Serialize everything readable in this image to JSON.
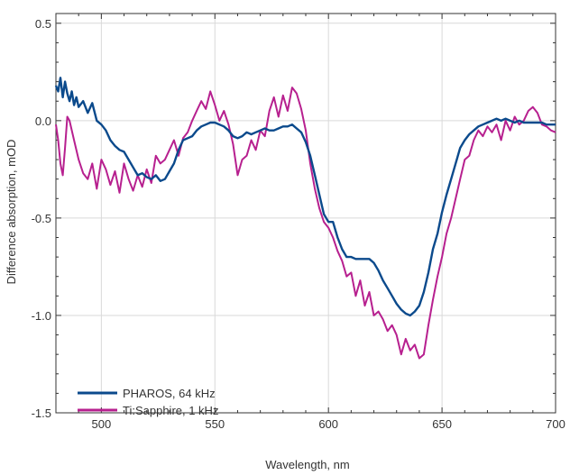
{
  "chart_data": {
    "type": "line",
    "xlabel": "Wavelength, nm",
    "ylabel": "Difference absorption, mOD",
    "xlim": [
      480,
      700
    ],
    "ylim": [
      -1.5,
      0.55
    ],
    "x_ticks": [
      500,
      550,
      600,
      650,
      700
    ],
    "y_ticks": [
      0.5,
      0.0,
      -0.5,
      -1.0,
      -1.5
    ],
    "x_tick_labels": [
      "500",
      "550",
      "600",
      "650",
      "700"
    ],
    "y_tick_labels": [
      "0.5",
      "0.0",
      "-0.5",
      "-1.0",
      "-1.5"
    ],
    "grid": true,
    "legend_position": "bottom-left",
    "series": [
      {
        "name": "PHAROS, 64 kHz",
        "color": "#0b4a8c",
        "x": [
          480,
          481,
          482,
          483,
          484,
          485,
          486,
          487,
          488,
          489,
          490,
          492,
          494,
          496,
          498,
          500,
          502,
          504,
          506,
          508,
          510,
          512,
          514,
          516,
          518,
          520,
          522,
          524,
          526,
          528,
          530,
          532,
          534,
          536,
          538,
          540,
          542,
          544,
          546,
          548,
          550,
          552,
          554,
          556,
          558,
          560,
          562,
          564,
          566,
          568,
          570,
          572,
          574,
          576,
          578,
          580,
          582,
          584,
          586,
          588,
          590,
          592,
          594,
          596,
          598,
          600,
          602,
          604,
          606,
          608,
          610,
          612,
          614,
          616,
          618,
          620,
          622,
          624,
          626,
          628,
          630,
          632,
          634,
          636,
          638,
          640,
          642,
          644,
          646,
          648,
          650,
          652,
          654,
          656,
          658,
          660,
          662,
          664,
          666,
          668,
          670,
          672,
          674,
          676,
          678,
          680,
          682,
          684,
          686,
          688,
          690,
          692,
          694,
          696,
          698,
          700
        ],
        "y": [
          0.18,
          0.15,
          0.22,
          0.12,
          0.2,
          0.14,
          0.1,
          0.15,
          0.08,
          0.12,
          0.07,
          0.1,
          0.04,
          0.09,
          0.0,
          -0.02,
          -0.05,
          -0.1,
          -0.13,
          -0.15,
          -0.16,
          -0.2,
          -0.24,
          -0.28,
          -0.27,
          -0.29,
          -0.3,
          -0.28,
          -0.31,
          -0.3,
          -0.26,
          -0.22,
          -0.15,
          -0.1,
          -0.09,
          -0.08,
          -0.05,
          -0.03,
          -0.02,
          -0.01,
          -0.01,
          -0.02,
          -0.03,
          -0.05,
          -0.08,
          -0.09,
          -0.08,
          -0.06,
          -0.07,
          -0.06,
          -0.05,
          -0.04,
          -0.05,
          -0.05,
          -0.04,
          -0.03,
          -0.03,
          -0.02,
          -0.04,
          -0.06,
          -0.11,
          -0.18,
          -0.28,
          -0.38,
          -0.48,
          -0.52,
          -0.52,
          -0.6,
          -0.66,
          -0.7,
          -0.7,
          -0.71,
          -0.71,
          -0.71,
          -0.71,
          -0.73,
          -0.77,
          -0.82,
          -0.86,
          -0.9,
          -0.94,
          -0.97,
          -0.99,
          -1.0,
          -0.98,
          -0.95,
          -0.88,
          -0.78,
          -0.66,
          -0.58,
          -0.47,
          -0.38,
          -0.3,
          -0.22,
          -0.14,
          -0.1,
          -0.07,
          -0.05,
          -0.03,
          -0.02,
          -0.01,
          0.0,
          0.01,
          0.0,
          0.01,
          0.0,
          -0.01,
          0.0,
          -0.01,
          -0.01,
          -0.01,
          -0.01,
          -0.01,
          -0.02,
          -0.02,
          -0.02
        ]
      },
      {
        "name": "Ti:Sapphire, 1 kHz",
        "color": "#b7208f",
        "x": [
          480,
          481,
          482,
          483,
          484,
          485,
          486,
          488,
          490,
          492,
          494,
          496,
          498,
          500,
          502,
          504,
          506,
          508,
          510,
          512,
          514,
          516,
          518,
          520,
          522,
          524,
          526,
          528,
          530,
          532,
          534,
          536,
          538,
          540,
          542,
          544,
          546,
          548,
          550,
          552,
          554,
          556,
          558,
          560,
          562,
          564,
          566,
          568,
          570,
          572,
          574,
          576,
          578,
          580,
          582,
          584,
          586,
          588,
          590,
          592,
          594,
          596,
          598,
          600,
          602,
          604,
          606,
          608,
          610,
          612,
          614,
          616,
          618,
          620,
          622,
          624,
          626,
          628,
          630,
          632,
          634,
          636,
          638,
          640,
          642,
          644,
          646,
          648,
          650,
          652,
          654,
          656,
          658,
          660,
          662,
          664,
          666,
          668,
          670,
          672,
          674,
          676,
          678,
          680,
          682,
          684,
          686,
          688,
          690,
          692,
          694,
          696,
          698,
          700
        ],
        "y": [
          -0.02,
          -0.1,
          -0.22,
          -0.28,
          -0.14,
          0.02,
          0.0,
          -0.1,
          -0.2,
          -0.27,
          -0.3,
          -0.22,
          -0.35,
          -0.2,
          -0.25,
          -0.33,
          -0.26,
          -0.37,
          -0.22,
          -0.3,
          -0.36,
          -0.28,
          -0.34,
          -0.25,
          -0.32,
          -0.18,
          -0.22,
          -0.2,
          -0.15,
          -0.1,
          -0.18,
          -0.09,
          -0.06,
          0.0,
          0.05,
          0.1,
          0.06,
          0.15,
          0.08,
          0.0,
          0.05,
          -0.02,
          -0.12,
          -0.28,
          -0.2,
          -0.18,
          -0.1,
          -0.15,
          -0.05,
          -0.08,
          0.05,
          0.12,
          0.02,
          0.13,
          0.05,
          0.17,
          0.14,
          0.06,
          -0.05,
          -0.22,
          -0.35,
          -0.45,
          -0.52,
          -0.55,
          -0.6,
          -0.67,
          -0.72,
          -0.8,
          -0.78,
          -0.9,
          -0.82,
          -0.95,
          -0.88,
          -1.0,
          -0.98,
          -1.02,
          -1.08,
          -1.05,
          -1.1,
          -1.2,
          -1.12,
          -1.18,
          -1.15,
          -1.22,
          -1.2,
          -1.05,
          -0.92,
          -0.8,
          -0.7,
          -0.58,
          -0.5,
          -0.4,
          -0.3,
          -0.2,
          -0.18,
          -0.1,
          -0.05,
          -0.08,
          -0.03,
          -0.06,
          -0.02,
          -0.1,
          0.0,
          -0.05,
          0.02,
          -0.02,
          0.0,
          0.05,
          0.07,
          0.04,
          -0.02,
          -0.03,
          -0.05,
          -0.06
        ]
      }
    ]
  }
}
